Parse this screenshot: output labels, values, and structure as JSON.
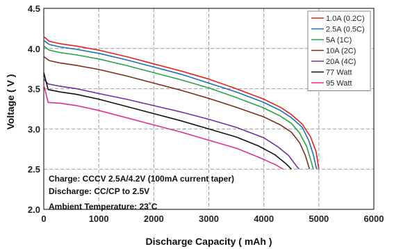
{
  "chart_data": {
    "type": "line",
    "xlabel": "Discharge Capacity ( mAh )",
    "ylabel": "Voltage ( V )",
    "xlim": [
      0,
      6000
    ],
    "ylim": [
      2.0,
      4.5
    ],
    "xticks": [
      "0",
      "1000",
      "2000",
      "3000",
      "4000",
      "5000",
      "6000"
    ],
    "yticks": [
      "2.0",
      "2.5",
      "3.0",
      "3.5",
      "4.0",
      "4.5"
    ],
    "grid": "dashed",
    "legend_position": "top-right",
    "annotations": [
      "Charge: CCCV 2.5A/4.2V (100mA current taper)",
      "Discharge: CC/CP to 2.5V",
      "Ambient Temperature: 23˚C"
    ],
    "series": [
      {
        "name": "1.0A (0.2C)",
        "color": "#e8221c",
        "points": [
          [
            0,
            4.15
          ],
          [
            100,
            4.09
          ],
          [
            300,
            4.06
          ],
          [
            600,
            4.03
          ],
          [
            1000,
            3.98
          ],
          [
            1500,
            3.9
          ],
          [
            2000,
            3.81
          ],
          [
            2500,
            3.72
          ],
          [
            3000,
            3.62
          ],
          [
            3500,
            3.5
          ],
          [
            4000,
            3.37
          ],
          [
            4300,
            3.27
          ],
          [
            4500,
            3.18
          ],
          [
            4700,
            3.06
          ],
          [
            4850,
            2.9
          ],
          [
            4950,
            2.72
          ],
          [
            5000,
            2.5
          ]
        ]
      },
      {
        "name": "2.5A (0.5C)",
        "color": "#1e6fbf",
        "points": [
          [
            0,
            4.1
          ],
          [
            100,
            4.05
          ],
          [
            300,
            4.02
          ],
          [
            600,
            3.99
          ],
          [
            1000,
            3.94
          ],
          [
            1500,
            3.86
          ],
          [
            2000,
            3.77
          ],
          [
            2500,
            3.68
          ],
          [
            3000,
            3.57
          ],
          [
            3500,
            3.46
          ],
          [
            4000,
            3.33
          ],
          [
            4300,
            3.23
          ],
          [
            4500,
            3.14
          ],
          [
            4700,
            3.02
          ],
          [
            4820,
            2.85
          ],
          [
            4900,
            2.68
          ],
          [
            4960,
            2.5
          ]
        ]
      },
      {
        "name": "5A (1C)",
        "color": "#2aa24a",
        "points": [
          [
            0,
            4.03
          ],
          [
            100,
            3.98
          ],
          [
            300,
            3.95
          ],
          [
            600,
            3.92
          ],
          [
            1000,
            3.87
          ],
          [
            1500,
            3.79
          ],
          [
            2000,
            3.7
          ],
          [
            2500,
            3.61
          ],
          [
            3000,
            3.51
          ],
          [
            3500,
            3.39
          ],
          [
            4000,
            3.26
          ],
          [
            4300,
            3.16
          ],
          [
            4500,
            3.07
          ],
          [
            4650,
            2.95
          ],
          [
            4780,
            2.78
          ],
          [
            4850,
            2.62
          ],
          [
            4900,
            2.5
          ]
        ]
      },
      {
        "name": "10A (2C)",
        "color": "#7a2e1a",
        "points": [
          [
            0,
            3.9
          ],
          [
            100,
            3.85
          ],
          [
            300,
            3.82
          ],
          [
            600,
            3.79
          ],
          [
            1000,
            3.74
          ],
          [
            1500,
            3.66
          ],
          [
            2000,
            3.57
          ],
          [
            2500,
            3.48
          ],
          [
            3000,
            3.38
          ],
          [
            3500,
            3.27
          ],
          [
            4000,
            3.15
          ],
          [
            4300,
            3.05
          ],
          [
            4500,
            2.96
          ],
          [
            4650,
            2.83
          ],
          [
            4750,
            2.68
          ],
          [
            4800,
            2.57
          ],
          [
            4830,
            2.5
          ]
        ]
      },
      {
        "name": "20A (4C)",
        "color": "#7030a0",
        "points": [
          [
            0,
            3.62
          ],
          [
            80,
            3.56
          ],
          [
            300,
            3.53
          ],
          [
            600,
            3.5
          ],
          [
            1000,
            3.44
          ],
          [
            1500,
            3.37
          ],
          [
            2000,
            3.29
          ],
          [
            2500,
            3.21
          ],
          [
            3000,
            3.12
          ],
          [
            3500,
            3.02
          ],
          [
            4000,
            2.89
          ],
          [
            4250,
            2.78
          ],
          [
            4450,
            2.67
          ],
          [
            4580,
            2.55
          ],
          [
            4640,
            2.5
          ]
        ]
      },
      {
        "name": "77 Watt",
        "color": "#111111",
        "points": [
          [
            0,
            3.7
          ],
          [
            80,
            3.49
          ],
          [
            300,
            3.46
          ],
          [
            600,
            3.43
          ],
          [
            1000,
            3.37
          ],
          [
            1500,
            3.28
          ],
          [
            2000,
            3.19
          ],
          [
            2500,
            3.1
          ],
          [
            3000,
            3.0
          ],
          [
            3500,
            2.9
          ],
          [
            3900,
            2.79
          ],
          [
            4200,
            2.68
          ],
          [
            4400,
            2.57
          ],
          [
            4500,
            2.5
          ]
        ]
      },
      {
        "name": "95 Watt",
        "color": "#e2308f",
        "points": [
          [
            0,
            3.55
          ],
          [
            80,
            3.33
          ],
          [
            300,
            3.32
          ],
          [
            600,
            3.29
          ],
          [
            1000,
            3.23
          ],
          [
            1500,
            3.14
          ],
          [
            2000,
            3.05
          ],
          [
            2500,
            2.96
          ],
          [
            3000,
            2.86
          ],
          [
            3500,
            2.76
          ],
          [
            3900,
            2.65
          ],
          [
            4200,
            2.56
          ],
          [
            4350,
            2.5
          ]
        ]
      }
    ]
  }
}
